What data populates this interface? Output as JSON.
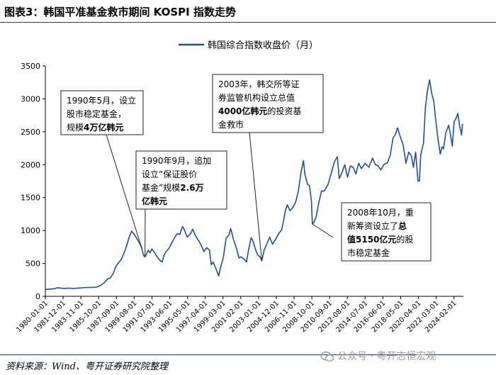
{
  "header": {
    "title": "图表3：韩国平准基金救市期间 KOSPI 指数走势"
  },
  "source": "资料来源：Wind、粤开证券研究院整理",
  "watermark": "公众号 · 粤开志恒宏观",
  "colors": {
    "line": "#1f4e9a",
    "rule": "#1f3864",
    "axis": "#000000"
  },
  "chart_data": {
    "type": "line",
    "title": "",
    "legend": [
      "韩国综合指数收盘价（月）"
    ],
    "legend_position": "top-center",
    "ylim": [
      0,
      3500
    ],
    "yticks": [
      0,
      500,
      1000,
      1500,
      2000,
      2500,
      3000,
      3500
    ],
    "xlim": [
      1980.0,
      2025.1
    ],
    "xticks": [
      "1980-01-01",
      "1981-12-01",
      "1983-11-01",
      "1985-10-01",
      "1987-09-01",
      "1989-08-01",
      "1991-07-01",
      "1993-06-01",
      "1995-05-01",
      "1997-04-01",
      "1999-03-01",
      "2001-02-01",
      "2003-01-01",
      "2004-12-01",
      "2006-11-01",
      "2008-10-01",
      "2010-09-01",
      "2012-08-01",
      "2014-07-01",
      "2016-06-01",
      "2018-05-01",
      "2020-04-01",
      "2022-03-01",
      "2024-02-01"
    ],
    "series": [
      {
        "name": "韩国综合指数收盘价（月）",
        "points": [
          [
            1980.0,
            105
          ],
          [
            1980.5,
            110
          ],
          [
            1981.0,
            115
          ],
          [
            1981.3,
            130
          ],
          [
            1981.7,
            125
          ],
          [
            1982.0,
            120
          ],
          [
            1982.5,
            125
          ],
          [
            1983.0,
            120
          ],
          [
            1983.5,
            125
          ],
          [
            1984.0,
            130
          ],
          [
            1984.5,
            135
          ],
          [
            1985.0,
            135
          ],
          [
            1985.5,
            140
          ],
          [
            1985.9,
            160
          ],
          [
            1986.3,
            200
          ],
          [
            1986.7,
            260
          ],
          [
            1987.0,
            280
          ],
          [
            1987.3,
            340
          ],
          [
            1987.6,
            450
          ],
          [
            1987.9,
            510
          ],
          [
            1988.2,
            560
          ],
          [
            1988.5,
            660
          ],
          [
            1988.8,
            780
          ],
          [
            1989.0,
            880
          ],
          [
            1989.3,
            990
          ],
          [
            1989.6,
            940
          ],
          [
            1989.9,
            870
          ],
          [
            1990.2,
            800
          ],
          [
            1990.4,
            730
          ],
          [
            1990.6,
            620
          ],
          [
            1990.75,
            600
          ],
          [
            1990.9,
            640
          ],
          [
            1991.1,
            700
          ],
          [
            1991.3,
            660
          ],
          [
            1991.5,
            720
          ],
          [
            1991.8,
            660
          ],
          [
            1992.1,
            590
          ],
          [
            1992.4,
            540
          ],
          [
            1992.6,
            520
          ],
          [
            1992.8,
            620
          ],
          [
            1993.0,
            680
          ],
          [
            1993.3,
            720
          ],
          [
            1993.6,
            800
          ],
          [
            1993.9,
            880
          ],
          [
            1994.2,
            950
          ],
          [
            1994.5,
            940
          ],
          [
            1994.8,
            1060
          ],
          [
            1995.0,
            1010
          ],
          [
            1995.3,
            900
          ],
          [
            1995.6,
            940
          ],
          [
            1995.9,
            1020
          ],
          [
            1996.2,
            920
          ],
          [
            1996.6,
            830
          ],
          [
            1996.9,
            750
          ],
          [
            1997.1,
            680
          ],
          [
            1997.4,
            740
          ],
          [
            1997.7,
            700
          ],
          [
            1997.9,
            480
          ],
          [
            1998.1,
            520
          ],
          [
            1998.4,
            420
          ],
          [
            1998.7,
            310
          ],
          [
            1998.9,
            440
          ],
          [
            1999.2,
            590
          ],
          [
            1999.5,
            880
          ],
          [
            1999.8,
            930
          ],
          [
            2000.0,
            1030
          ],
          [
            2000.3,
            860
          ],
          [
            2000.6,
            740
          ],
          [
            2000.9,
            580
          ],
          [
            2001.1,
            600
          ],
          [
            2001.4,
            570
          ],
          [
            2001.7,
            520
          ],
          [
            2001.9,
            690
          ],
          [
            2002.2,
            890
          ],
          [
            2002.4,
            840
          ],
          [
            2002.7,
            700
          ],
          [
            2002.9,
            630
          ],
          [
            2003.2,
            590
          ],
          [
            2003.35,
            540
          ],
          [
            2003.6,
            700
          ],
          [
            2003.9,
            800
          ],
          [
            2004.2,
            900
          ],
          [
            2004.5,
            790
          ],
          [
            2004.9,
            880
          ],
          [
            2005.2,
            960
          ],
          [
            2005.5,
            1010
          ],
          [
            2005.9,
            1300
          ],
          [
            2006.1,
            1390
          ],
          [
            2006.4,
            1300
          ],
          [
            2006.7,
            1350
          ],
          [
            2007.0,
            1430
          ],
          [
            2007.3,
            1600
          ],
          [
            2007.6,
            1900
          ],
          [
            2007.85,
            2060
          ],
          [
            2008.0,
            1850
          ],
          [
            2008.3,
            1700
          ],
          [
            2008.5,
            1680
          ],
          [
            2008.7,
            1450
          ],
          [
            2008.8,
            1100
          ],
          [
            2008.95,
            1120
          ],
          [
            2009.2,
            1200
          ],
          [
            2009.5,
            1420
          ],
          [
            2009.8,
            1600
          ],
          [
            2010.1,
            1600
          ],
          [
            2010.5,
            1700
          ],
          [
            2010.9,
            1900
          ],
          [
            2011.2,
            2050
          ],
          [
            2011.5,
            2120
          ],
          [
            2011.7,
            1790
          ],
          [
            2012.0,
            1880
          ],
          [
            2012.3,
            2000
          ],
          [
            2012.6,
            1810
          ],
          [
            2012.9,
            1980
          ],
          [
            2013.2,
            1960
          ],
          [
            2013.5,
            1860
          ],
          [
            2013.8,
            2020
          ],
          [
            2014.1,
            1940
          ],
          [
            2014.5,
            2020
          ],
          [
            2014.9,
            1960
          ],
          [
            2015.3,
            2100
          ],
          [
            2015.6,
            2000
          ],
          [
            2015.9,
            1980
          ],
          [
            2016.2,
            1920
          ],
          [
            2016.5,
            2000
          ],
          [
            2016.9,
            2030
          ],
          [
            2017.2,
            2140
          ],
          [
            2017.5,
            2400
          ],
          [
            2017.8,
            2470
          ],
          [
            2018.0,
            2560
          ],
          [
            2018.3,
            2420
          ],
          [
            2018.6,
            2300
          ],
          [
            2018.9,
            2020
          ],
          [
            2019.2,
            2190
          ],
          [
            2019.5,
            2130
          ],
          [
            2019.7,
            1960
          ],
          [
            2019.95,
            2190
          ],
          [
            2020.2,
            1750
          ],
          [
            2020.35,
            1750
          ],
          [
            2020.5,
            2150
          ],
          [
            2020.8,
            2330
          ],
          [
            2021.0,
            2870
          ],
          [
            2021.2,
            3100
          ],
          [
            2021.45,
            3290
          ],
          [
            2021.7,
            3070
          ],
          [
            2021.9,
            2970
          ],
          [
            2022.1,
            2690
          ],
          [
            2022.35,
            2400
          ],
          [
            2022.6,
            2160
          ],
          [
            2022.8,
            2270
          ],
          [
            2022.95,
            2240
          ],
          [
            2023.2,
            2480
          ],
          [
            2023.5,
            2600
          ],
          [
            2023.7,
            2460
          ],
          [
            2023.9,
            2280
          ],
          [
            2024.1,
            2650
          ],
          [
            2024.3,
            2700
          ],
          [
            2024.5,
            2780
          ],
          [
            2024.7,
            2580
          ],
          [
            2024.9,
            2450
          ],
          [
            2025.0,
            2620
          ]
        ]
      }
    ],
    "annotations": [
      {
        "lines": [
          [
            {
              "t": "1990年5月，设立",
              "b": false
            }
          ],
          [
            {
              "t": "股市稳定基金，",
              "b": false
            }
          ],
          [
            {
              "t": "规模",
              "b": false
            },
            {
              "t": "4万亿韩元",
              "b": true
            }
          ]
        ],
        "target": [
          1990.4,
          730
        ]
      },
      {
        "lines": [
          [
            {
              "t": "1990年9月，追加",
              "b": false
            }
          ],
          [
            {
              "t": "设立”保证股价",
              "b": false
            }
          ],
          [
            {
              "t": "基金”规模",
              "b": false
            },
            {
              "t": "2.6万",
              "b": true
            }
          ],
          [
            {
              "t": "亿韩元",
              "b": true
            }
          ]
        ],
        "target": [
          1990.75,
          600
        ]
      },
      {
        "lines": [
          [
            {
              "t": "2003年，韩交所等证",
              "b": false
            }
          ],
          [
            {
              "t": "券监管机构设立总值",
              "b": false
            }
          ],
          [
            {
              "t": "4000亿韩元",
              "b": true
            },
            {
              "t": "的投资基",
              "b": false
            }
          ],
          [
            {
              "t": "金救市",
              "b": false
            }
          ]
        ],
        "target": [
          2003.35,
          540
        ]
      },
      {
        "lines": [
          [
            {
              "t": "2008年10月，重",
              "b": false
            }
          ],
          [
            {
              "t": "新筹资设立了",
              "b": false
            },
            {
              "t": "总",
              "b": true
            }
          ],
          [
            {
              "t": "值5150亿元",
              "b": true
            },
            {
              "t": "的股",
              "b": false
            }
          ],
          [
            {
              "t": "市稳定基金",
              "b": false
            }
          ]
        ],
        "target": [
          2008.8,
          1100
        ]
      }
    ]
  }
}
